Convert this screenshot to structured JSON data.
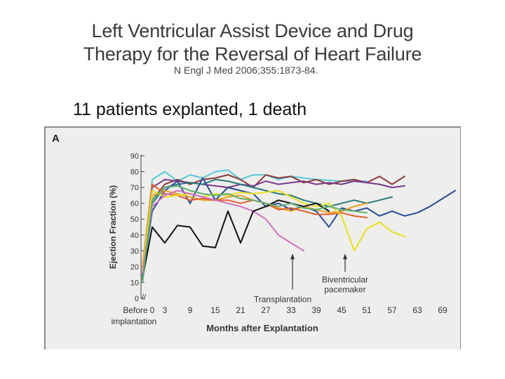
{
  "header": {
    "title_line1": "Left Ventricular Assist Device and Drug",
    "title_line2": "Therapy for the Reversal of Heart Failure",
    "citation": "N Engl J Med 2006;355:1873-84.",
    "caption": "11 patients explanted, 1 death"
  },
  "chart_data": {
    "type": "line",
    "panel_label": "A",
    "xlabel": "Months after Explantation",
    "ylabel": "Ejection Fraction (%)",
    "ylim": [
      0,
      90
    ],
    "yticks": [
      0,
      10,
      20,
      30,
      40,
      50,
      60,
      70,
      80,
      90
    ],
    "xticks": [
      0,
      3,
      9,
      15,
      21,
      27,
      33,
      39,
      45,
      51,
      57,
      63,
      69
    ],
    "x_before_label": "Before",
    "x_before_sublabel": "implantation",
    "grid": false,
    "annotations": [
      {
        "text": "Transplantation",
        "x": 33,
        "y": 30
      },
      {
        "text": "Biventricular",
        "x": 45,
        "y": 30
      },
      {
        "text": "pacemaker",
        "x": 45,
        "y": 30
      }
    ],
    "series": [
      {
        "color": "#55c8d8",
        "values": [
          [
            -99,
            10
          ],
          [
            0,
            75
          ],
          [
            3,
            80
          ],
          [
            6,
            74
          ],
          [
            9,
            78
          ],
          [
            12,
            76
          ],
          [
            15,
            80
          ],
          [
            18,
            81
          ],
          [
            21,
            75
          ],
          [
            24,
            78
          ],
          [
            27,
            78
          ],
          [
            30,
            75
          ],
          [
            33,
            77
          ],
          [
            36,
            76
          ],
          [
            39,
            75
          ],
          [
            45,
            74
          ],
          [
            51,
            74
          ]
        ]
      },
      {
        "color": "#8b3a3a",
        "values": [
          [
            -99,
            12
          ],
          [
            0,
            62
          ],
          [
            3,
            72
          ],
          [
            6,
            75
          ],
          [
            9,
            72
          ],
          [
            12,
            75
          ],
          [
            15,
            76
          ],
          [
            18,
            78
          ],
          [
            21,
            75
          ],
          [
            24,
            70
          ],
          [
            27,
            78
          ],
          [
            30,
            76
          ],
          [
            33,
            77
          ],
          [
            36,
            73
          ],
          [
            39,
            75
          ],
          [
            42,
            72
          ],
          [
            45,
            74
          ],
          [
            48,
            75
          ],
          [
            51,
            73
          ],
          [
            54,
            77
          ],
          [
            57,
            72
          ],
          [
            60,
            77
          ]
        ]
      },
      {
        "color": "#7a3a8c",
        "values": [
          [
            -99,
            15
          ],
          [
            0,
            70
          ],
          [
            3,
            75
          ],
          [
            6,
            74
          ],
          [
            9,
            73
          ],
          [
            12,
            72
          ],
          [
            15,
            71
          ],
          [
            18,
            70
          ],
          [
            21,
            72
          ],
          [
            24,
            71
          ],
          [
            27,
            74
          ],
          [
            30,
            72
          ],
          [
            33,
            73
          ],
          [
            36,
            74
          ],
          [
            39,
            72
          ],
          [
            42,
            73
          ],
          [
            45,
            72
          ],
          [
            48,
            74
          ],
          [
            51,
            73
          ],
          [
            54,
            72
          ],
          [
            57,
            70
          ],
          [
            60,
            71
          ]
        ]
      },
      {
        "color": "#2a7a7a",
        "values": [
          [
            -99,
            10
          ],
          [
            0,
            60
          ],
          [
            3,
            70
          ],
          [
            6,
            72
          ],
          [
            9,
            73
          ],
          [
            12,
            72
          ],
          [
            15,
            75
          ],
          [
            18,
            74
          ],
          [
            21,
            72
          ],
          [
            24,
            70
          ],
          [
            27,
            68
          ],
          [
            30,
            66
          ],
          [
            33,
            65
          ],
          [
            36,
            62
          ],
          [
            39,
            60
          ],
          [
            42,
            58
          ],
          [
            45,
            60
          ],
          [
            48,
            62
          ],
          [
            51,
            60
          ],
          [
            54,
            62
          ],
          [
            57,
            64
          ]
        ]
      },
      {
        "color": "#2a4a9a",
        "values": [
          [
            -99,
            14
          ],
          [
            0,
            55
          ],
          [
            3,
            68
          ],
          [
            6,
            74
          ],
          [
            9,
            60
          ],
          [
            12,
            76
          ],
          [
            15,
            62
          ],
          [
            18,
            70
          ],
          [
            21,
            68
          ],
          [
            24,
            66
          ],
          [
            27,
            58
          ],
          [
            30,
            60
          ],
          [
            33,
            56
          ],
          [
            36,
            58
          ],
          [
            39,
            55
          ],
          [
            42,
            45
          ],
          [
            45,
            57
          ],
          [
            48,
            55
          ],
          [
            51,
            57
          ],
          [
            54,
            52
          ],
          [
            57,
            55
          ],
          [
            60,
            52
          ],
          [
            63,
            54
          ],
          [
            66,
            58
          ],
          [
            69,
            63
          ],
          [
            72,
            68
          ]
        ]
      },
      {
        "color": "#e8a020",
        "values": [
          [
            -99,
            18
          ],
          [
            0,
            65
          ],
          [
            3,
            68
          ],
          [
            6,
            66
          ],
          [
            9,
            64
          ],
          [
            12,
            62
          ],
          [
            15,
            62
          ],
          [
            18,
            64
          ],
          [
            21,
            65
          ],
          [
            24,
            62
          ],
          [
            27,
            60
          ],
          [
            30,
            57
          ],
          [
            33,
            55
          ],
          [
            36,
            58
          ],
          [
            39,
            56
          ],
          [
            42,
            54
          ],
          [
            45,
            55
          ],
          [
            48,
            58
          ],
          [
            51,
            60
          ]
        ]
      },
      {
        "color": "#e06030",
        "values": [
          [
            -99,
            20
          ],
          [
            0,
            72
          ],
          [
            3,
            66
          ],
          [
            6,
            65
          ],
          [
            9,
            62
          ],
          [
            12,
            63
          ],
          [
            15,
            62
          ],
          [
            18,
            62
          ],
          [
            21,
            60
          ],
          [
            24,
            62
          ],
          [
            27,
            60
          ],
          [
            30,
            56
          ],
          [
            33,
            57
          ],
          [
            36,
            55
          ],
          [
            39,
            53
          ],
          [
            42,
            53
          ],
          [
            45,
            54
          ],
          [
            48,
            52
          ],
          [
            51,
            51
          ]
        ]
      },
      {
        "color": "#e8e020",
        "values": [
          [
            -99,
            18
          ],
          [
            0,
            68
          ],
          [
            3,
            64
          ],
          [
            6,
            65
          ],
          [
            9,
            66
          ],
          [
            12,
            64
          ],
          [
            15,
            66
          ],
          [
            18,
            65
          ],
          [
            21,
            67
          ],
          [
            24,
            66
          ],
          [
            27,
            67
          ],
          [
            30,
            68
          ],
          [
            33,
            64
          ],
          [
            36,
            60
          ],
          [
            39,
            58
          ],
          [
            42,
            60
          ],
          [
            45,
            52
          ],
          [
            48,
            30
          ],
          [
            51,
            44
          ],
          [
            54,
            48
          ],
          [
            57,
            42
          ],
          [
            60,
            39
          ]
        ]
      },
      {
        "color": "#d070c0",
        "values": [
          [
            -99,
            16
          ],
          [
            0,
            58
          ],
          [
            3,
            65
          ],
          [
            6,
            68
          ],
          [
            9,
            66
          ],
          [
            12,
            64
          ],
          [
            15,
            62
          ],
          [
            18,
            60
          ],
          [
            21,
            58
          ],
          [
            24,
            55
          ],
          [
            27,
            50
          ],
          [
            30,
            40
          ],
          [
            33,
            35
          ],
          [
            36,
            30
          ]
        ]
      },
      {
        "color": "#111111",
        "values": [
          [
            -99,
            12
          ],
          [
            0,
            45
          ],
          [
            3,
            35
          ],
          [
            6,
            46
          ],
          [
            9,
            45
          ],
          [
            12,
            33
          ],
          [
            15,
            32
          ],
          [
            18,
            55
          ],
          [
            21,
            35
          ],
          [
            24,
            55
          ],
          [
            27,
            58
          ],
          [
            30,
            62
          ],
          [
            33,
            60
          ],
          [
            36,
            58
          ],
          [
            39,
            60
          ],
          [
            42,
            55
          ]
        ]
      },
      {
        "color": "#60b070",
        "values": [
          [
            -99,
            10
          ],
          [
            0,
            62
          ],
          [
            3,
            70
          ],
          [
            6,
            71
          ],
          [
            9,
            68
          ],
          [
            12,
            66
          ],
          [
            15,
            65
          ],
          [
            18,
            66
          ],
          [
            21,
            63
          ],
          [
            24,
            62
          ],
          [
            27,
            60
          ],
          [
            30,
            58
          ],
          [
            33,
            60
          ],
          [
            36,
            57
          ],
          [
            39,
            56
          ],
          [
            42,
            58
          ],
          [
            45,
            56
          ],
          [
            48,
            55
          ],
          [
            51,
            54
          ]
        ]
      }
    ]
  }
}
